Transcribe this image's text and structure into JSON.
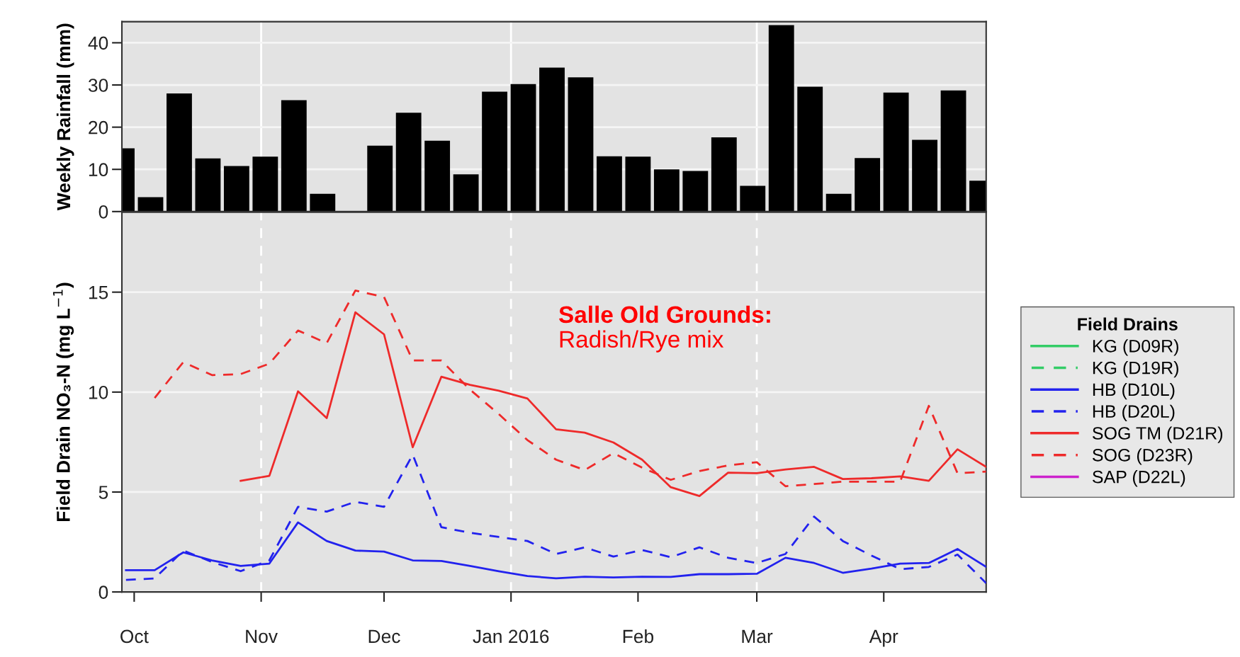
{
  "chart_data": [
    {
      "type": "bar",
      "ylabel": "Weekly Rainfall (mm)",
      "color": "#000000",
      "x": [
        "2015-09-28",
        "2015-10-05",
        "2015-10-12",
        "2015-10-19",
        "2015-10-26",
        "2015-11-02",
        "2015-11-09",
        "2015-11-16",
        "2015-11-23",
        "2015-11-30",
        "2015-12-07",
        "2015-12-14",
        "2015-12-21",
        "2015-12-28",
        "2016-01-04",
        "2016-01-11",
        "2016-01-18",
        "2016-01-25",
        "2016-02-01",
        "2016-02-08",
        "2016-02-15",
        "2016-02-22",
        "2016-02-29",
        "2016-03-07",
        "2016-03-14",
        "2016-03-21",
        "2016-03-28",
        "2016-04-04",
        "2016-04-11",
        "2016-04-18",
        "2016-04-25"
      ],
      "values": [
        15.0,
        3.4,
        28.0,
        12.6,
        10.8,
        13.0,
        26.4,
        4.2,
        null,
        15.6,
        23.4,
        16.8,
        8.8,
        28.4,
        30.2,
        34.1,
        31.8,
        13.1,
        13.0,
        10.0,
        9.6,
        17.6,
        6.1,
        44.2,
        29.6,
        4.2,
        12.7,
        28.2,
        17.0,
        28.7,
        7.3
      ],
      "xlim": [
        "2015-09-28",
        "2016-04-26"
      ],
      "ylim": [
        0,
        45
      ],
      "yticks": [
        0,
        10,
        20,
        30,
        40
      ],
      "tick_labels": "y",
      "grid": "y",
      "ref_lines": [
        {
          "axis": "x",
          "value": "2015-11-01",
          "color": "#ffffff",
          "line_style": "solid"
        },
        {
          "axis": "x",
          "value": "2016-01-01",
          "color": "#ffffff",
          "line_style": "solid"
        },
        {
          "axis": "x",
          "value": "2016-03-01",
          "color": "#ffffff",
          "line_style": "solid"
        }
      ]
    },
    {
      "type": "line",
      "ylabel": "Field Drain NO₃-N (mg L$^{−1}$)",
      "legend_title": "Field Drains",
      "legend": "right",
      "annotations": [
        "Salle Old Grounds:",
        "Radish/Rye mix"
      ],
      "x": [
        "2015-09-29",
        "2015-10-06",
        "2015-10-13",
        "2015-10-20",
        "2015-10-27",
        "2015-11-03",
        "2015-11-10",
        "2015-11-17",
        "2015-11-24",
        "2015-12-01",
        "2015-12-08",
        "2015-12-15",
        "2015-12-22",
        "2015-12-29",
        "2016-01-05",
        "2016-01-12",
        "2016-01-19",
        "2016-01-26",
        "2016-02-02",
        "2016-02-09",
        "2016-02-16",
        "2016-02-23",
        "2016-03-01",
        "2016-03-08",
        "2016-03-15",
        "2016-03-22",
        "2016-03-29",
        "2016-04-05",
        "2016-04-12",
        "2016-04-19",
        "2016-04-26"
      ],
      "series": [
        {
          "name": "KG (D09R)",
          "color": "#33cc66",
          "line_style": "solid",
          "values": [
            null,
            null,
            null,
            null,
            null,
            null,
            null,
            null,
            null,
            null,
            null,
            null,
            null,
            null,
            null,
            null,
            null,
            null,
            null,
            null,
            null,
            null,
            null,
            null,
            null,
            null,
            null,
            null,
            null,
            null,
            null
          ]
        },
        {
          "name": "KG (D19R)",
          "color": "#33cc66",
          "line_style": "dashed",
          "values": [
            null,
            null,
            null,
            null,
            null,
            null,
            null,
            null,
            null,
            null,
            null,
            null,
            null,
            null,
            null,
            null,
            null,
            null,
            null,
            null,
            null,
            null,
            null,
            null,
            null,
            null,
            null,
            null,
            null,
            null,
            null
          ]
        },
        {
          "name": "HB (D10L)",
          "color": "#2222ee",
          "line_style": "solid",
          "values": [
            1.09,
            1.09,
            1.98,
            1.58,
            1.3,
            1.42,
            3.48,
            2.55,
            2.07,
            2.02,
            1.58,
            1.55,
            1.3,
            1.04,
            0.8,
            0.68,
            0.76,
            0.73,
            0.76,
            0.75,
            0.89,
            0.89,
            0.91,
            1.71,
            1.45,
            0.96,
            1.17,
            1.42,
            1.45,
            2.15,
            1.25
          ]
        },
        {
          "name": "HB (D20L)",
          "color": "#2222ee",
          "line_style": "dashed",
          "values": [
            0.6,
            0.68,
            2.07,
            1.5,
            1.04,
            1.58,
            4.26,
            4.02,
            4.51,
            4.26,
            6.87,
            3.24,
            2.96,
            2.75,
            2.55,
            1.9,
            2.23,
            1.77,
            2.1,
            1.74,
            2.23,
            1.71,
            1.45,
            1.9,
            3.77,
            2.55,
            1.82,
            1.14,
            1.25,
            1.87,
            0.44
          ]
        },
        {
          "name": "SOG TM (D21R)",
          "color": "#ee2a2a",
          "line_style": "solid",
          "values": [
            null,
            null,
            null,
            null,
            5.56,
            5.81,
            10.04,
            8.7,
            13.99,
            12.89,
            7.24,
            10.77,
            10.36,
            10.07,
            9.68,
            8.14,
            7.97,
            7.48,
            6.62,
            5.24,
            4.8,
            5.97,
            5.94,
            6.13,
            6.26,
            5.65,
            5.69,
            5.78,
            5.56,
            7.14,
            6.26
          ]
        },
        {
          "name": "SOG (D23R)",
          "color": "#ee2a2a",
          "line_style": "dashed",
          "values": [
            null,
            9.71,
            11.5,
            10.85,
            10.9,
            11.42,
            13.08,
            12.45,
            15.08,
            14.76,
            11.58,
            11.58,
            10.12,
            8.9,
            7.6,
            6.62,
            6.1,
            6.95,
            6.22,
            5.61,
            6.05,
            6.33,
            6.49,
            5.29,
            5.4,
            5.52,
            5.52,
            5.52,
            9.31,
            5.94,
            6.02
          ]
        },
        {
          "name": "SAP (D22L)",
          "color": "#cc22cc",
          "line_style": "solid",
          "values": [
            null,
            null,
            null,
            null,
            null,
            null,
            null,
            null,
            null,
            null,
            null,
            null,
            null,
            null,
            null,
            null,
            null,
            null,
            null,
            null,
            null,
            null,
            null,
            null,
            null,
            null,
            null,
            null,
            null,
            null,
            null
          ]
        }
      ],
      "xlim": [
        "2015-09-28",
        "2016-04-26"
      ],
      "ylim": [
        0,
        19
      ],
      "yticks": [
        0,
        5,
        10,
        15
      ],
      "xticks": [
        {
          "value": "2015-10-01",
          "label": "Oct"
        },
        {
          "value": "2015-11-01",
          "label": "Nov"
        },
        {
          "value": "2015-12-01",
          "label": "Dec"
        },
        {
          "value": "2016-01-01",
          "label": "Jan 2016"
        },
        {
          "value": "2016-02-01",
          "label": "Feb"
        },
        {
          "value": "2016-03-01",
          "label": "Mar"
        },
        {
          "value": "2016-04-01",
          "label": "Apr"
        }
      ],
      "grid": "y",
      "ref_lines": [
        {
          "axis": "x",
          "value": "2015-11-01",
          "color": "#ffffff",
          "line_style": "dashed"
        },
        {
          "axis": "x",
          "value": "2016-01-01",
          "color": "#ffffff",
          "line_style": "dashed"
        },
        {
          "axis": "x",
          "value": "2016-03-01",
          "color": "#ffffff",
          "line_style": "dashed"
        }
      ]
    }
  ]
}
